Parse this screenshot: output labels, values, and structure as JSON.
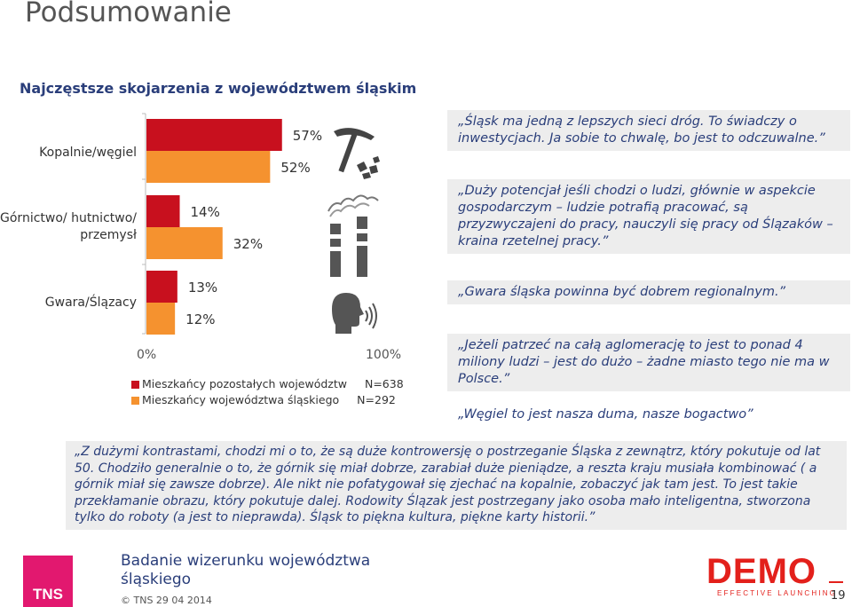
{
  "page_title": "Podsumowanie",
  "subtitle": "Najczęstsze skojarzenia z województwem śląskim",
  "chart_data": {
    "type": "bar",
    "orientation": "horizontal",
    "categories": [
      "Kopalnie/węgiel",
      "Górnictwo/ hutnictwo/ przemysł",
      "Gwara/Ślązacy"
    ],
    "series": [
      {
        "name": "Mieszkańcy pozostałych województw",
        "n_label": "N=638",
        "color": "#c8101e",
        "values": [
          57,
          14,
          13
        ]
      },
      {
        "name": "Mieszkańcy województwa śląskiego",
        "n_label": "N=292",
        "color": "#f5922f",
        "values": [
          52,
          32,
          12
        ]
      }
    ],
    "value_labels": [
      [
        "57%",
        "52%"
      ],
      [
        "14%",
        "32%"
      ],
      [
        "13%",
        "12%"
      ]
    ],
    "xlim": [
      0,
      100
    ],
    "x_ticks": [
      "0%",
      "100%"
    ],
    "legend_position": "bottom"
  },
  "quotes": [
    "„Śląsk ma jedną z lepszych sieci dróg. To świadczy o inwestycjach. Ja sobie to chwalę, bo jest to odczuwalne.”",
    "„Duży potencjał jeśli chodzi o ludzi, głównie w aspekcie gospodarczym – ludzie potrafią pracować, są przyzwyczajeni do pracy, nauczyli się pracy od Ślązaków – kraina rzetelnej pracy.”",
    "„Gwara śląska powinna być dobrem regionalnym.”",
    "„Jeżeli patrzeć na całą aglomerację to jest to ponad 4 miliony ludzi – jest do dużo – żadne miasto tego nie ma w Polsce.”",
    "„Węgiel to jest nasza duma, nasze bogactwo”"
  ],
  "bottom_quote": "„Z dużymi kontrastami, chodzi mi o to, że są duże kontrowersję o postrzeganie Śląska z zewnątrz, który pokutuje od lat 50. Chodziło generalnie o to, że górnik się miał dobrze, zarabiał duże pieniądze, a reszta kraju musiała kombinować ( a górnik miał się zawsze dobrze). Ale nikt nie pofatygował się zjechać na kopalnie, zobaczyć jak tam jest. To jest takie przekłamanie obrazu, który pokutuje dalej. Rodowity Ślązak jest postrzegany jako osoba mało inteligentna, stworzona tylko do roboty (a jest to nieprawda). Śląsk to piękna kultura, piękne karty historii.”",
  "icons": [
    "pickaxe-coal-icon",
    "factory-chimneys-icon",
    "speaking-head-icon"
  ],
  "footer": {
    "logo_text": "TNS",
    "title_line1": "Badanie wizerunku województwa",
    "title_line2": "śląskiego",
    "meta": "© TNS   29 04 2014",
    "demo_logo": "DEMO",
    "demo_sub": "EFFECTIVE LAUNCHING",
    "page_number": "19"
  }
}
